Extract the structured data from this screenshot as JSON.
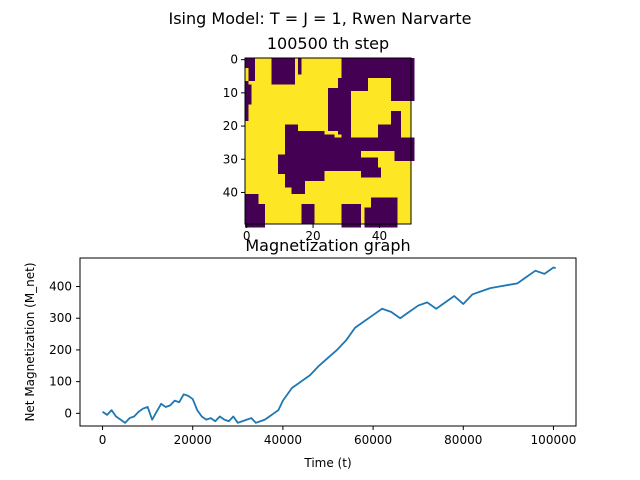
{
  "suptitle": "Ising Model: T = J = 1, Rwen Narvarte",
  "chart_data": [
    {
      "type": "heatmap",
      "title": "100500 th step",
      "size": 50,
      "x_ticks": [
        0,
        20,
        40
      ],
      "y_ticks": [
        0,
        10,
        20,
        30,
        40
      ],
      "colormap": "viridis",
      "color_low": "#440154",
      "color_high": "#fde725",
      "low_regions": [
        [
          0,
          2,
          0,
          2
        ],
        [
          0,
          6,
          1,
          2
        ],
        [
          0,
          5,
          8,
          9
        ],
        [
          0,
          7,
          8,
          9
        ],
        [
          0,
          4,
          16,
          16
        ],
        [
          0,
          7,
          9,
          14
        ],
        [
          0,
          9,
          29,
          30
        ],
        [
          0,
          9,
          31,
          36
        ],
        [
          0,
          5,
          32,
          50
        ],
        [
          5,
          12,
          44,
          50
        ],
        [
          7,
          8,
          29,
          32
        ],
        [
          7,
          18,
          0,
          0
        ],
        [
          8,
          13,
          1,
          1
        ],
        [
          6,
          22,
          28,
          31
        ],
        [
          9,
          21,
          25,
          28
        ],
        [
          20,
          24,
          29,
          31
        ],
        [
          24,
          27,
          37,
          44
        ],
        [
          16,
          23,
          44,
          46
        ],
        [
          20,
          24,
          40,
          46
        ],
        [
          24,
          30,
          45,
          50
        ],
        [
          20,
          38,
          12,
          15
        ],
        [
          23,
          28,
          15,
          26
        ],
        [
          24,
          27,
          27,
          38
        ],
        [
          22,
          36,
          13,
          23
        ],
        [
          26,
          33,
          23,
          34
        ],
        [
          28,
          36,
          14,
          17
        ],
        [
          29,
          34,
          10,
          14
        ],
        [
          36,
          40,
          14,
          17
        ],
        [
          30,
          33,
          34,
          39
        ],
        [
          33,
          35,
          35,
          40
        ],
        [
          41,
          50,
          0,
          3
        ],
        [
          44,
          50,
          3,
          5
        ],
        [
          44,
          49,
          17,
          20
        ],
        [
          44,
          50,
          29,
          34
        ],
        [
          42,
          50,
          38,
          45
        ],
        [
          45,
          50,
          36,
          38
        ]
      ]
    },
    {
      "type": "line",
      "title": "Magnetization graph",
      "xlabel": "Time (t)",
      "ylabel": "Net Magnetization (M_net)",
      "xlim": [
        -5000,
        105000
      ],
      "ylim": [
        -40,
        490
      ],
      "x_ticks": [
        0,
        20000,
        40000,
        60000,
        80000,
        100000
      ],
      "y_ticks": [
        0,
        100,
        200,
        300,
        400
      ],
      "color": "#1f77b4",
      "series": [
        {
          "x": [
            0,
            1000,
            2000,
            3000,
            4000,
            5000,
            6000,
            7000,
            8000,
            9000,
            10000,
            11000,
            12000,
            13000,
            14000,
            15000,
            16000,
            17000,
            18000,
            19000,
            20000,
            21000,
            22000,
            23000,
            24000,
            25000,
            26000,
            27000,
            28000,
            29000,
            30000,
            31000,
            32000,
            33000,
            34000,
            35000,
            36000,
            37000,
            38000,
            39000,
            40000,
            42000,
            44000,
            46000,
            48000,
            50000,
            52000,
            54000,
            56000,
            58000,
            60000,
            62000,
            64000,
            66000,
            68000,
            70000,
            72000,
            74000,
            76000,
            78000,
            80000,
            82000,
            84000,
            86000,
            88000,
            90000,
            92000,
            94000,
            96000,
            98000,
            100000,
            100500
          ],
          "y": [
            5,
            -5,
            10,
            -10,
            -20,
            -30,
            -15,
            -10,
            5,
            15,
            20,
            -20,
            5,
            30,
            20,
            25,
            40,
            35,
            60,
            55,
            45,
            10,
            -10,
            -20,
            -15,
            -25,
            -10,
            -20,
            -25,
            -10,
            -30,
            -25,
            -20,
            -15,
            -30,
            -25,
            -20,
            -10,
            0,
            10,
            40,
            80,
            100,
            120,
            150,
            175,
            200,
            230,
            270,
            290,
            310,
            330,
            320,
            300,
            320,
            340,
            350,
            330,
            350,
            370,
            345,
            375,
            385,
            395,
            400,
            405,
            410,
            430,
            450,
            440,
            460,
            458
          ]
        }
      ]
    }
  ]
}
